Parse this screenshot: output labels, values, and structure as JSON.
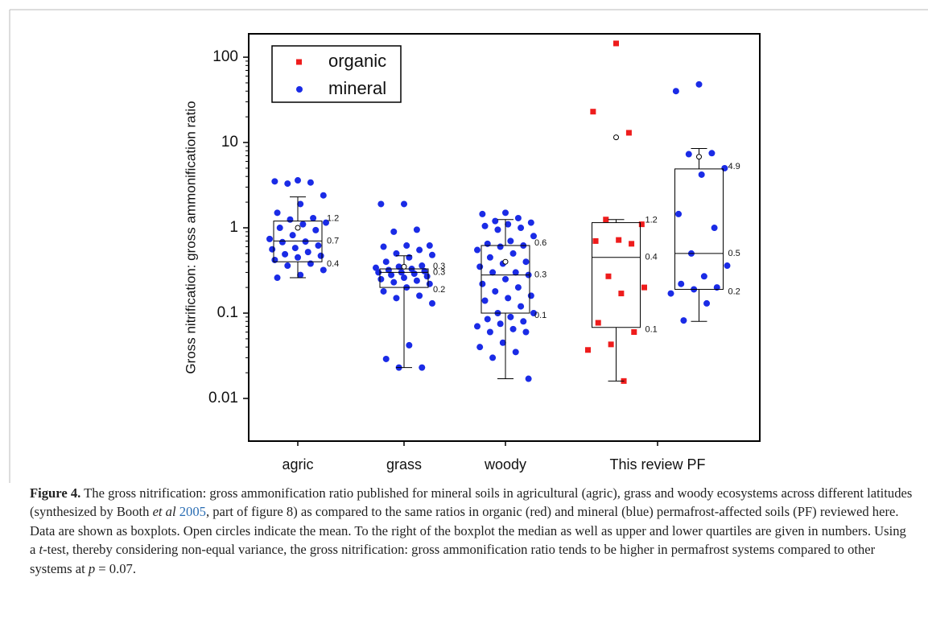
{
  "chart_data": {
    "type": "box",
    "y_label": "Gross nitrification: gross ammonification ratio",
    "log_scale": true,
    "ylim": [
      0.00316,
      188
    ],
    "yticks": [
      0.01,
      0.1,
      1,
      10,
      100
    ],
    "legend": "upper left",
    "categories": [
      "agric",
      "grass",
      "woody",
      "This review PF"
    ],
    "series": [
      {
        "name": "organic",
        "color": "#ee1c1c"
      },
      {
        "name": "mineral",
        "color": "#1a2be6"
      }
    ],
    "groups": [
      {
        "category": "agric",
        "boxes": [
          {
            "series": "mineral",
            "whisker_low": 0.26,
            "q1": 0.4,
            "median": 0.7,
            "q3": 1.2,
            "whisker_high": 2.3,
            "mean": 1.0,
            "labels": [
              "1.2",
              "0.7",
              "0.4"
            ],
            "values": [
              3.6,
              3.5,
              3.4,
              3.3,
              2.4,
              1.9,
              1.5,
              1.3,
              1.25,
              1.15,
              1.1,
              1.0,
              0.94,
              0.82,
              0.74,
              0.69,
              0.68,
              0.62,
              0.58,
              0.56,
              0.52,
              0.49,
              0.47,
              0.45,
              0.42,
              0.38,
              0.36,
              0.32,
              0.28,
              0.26
            ]
          }
        ]
      },
      {
        "category": "grass",
        "boxes": [
          {
            "series": "mineral",
            "whisker_low": 0.023,
            "q1": 0.2,
            "median": 0.3,
            "q3": 0.33,
            "whisker_high": 0.47,
            "mean": 0.35,
            "labels": [
              "0.3",
              "0.3",
              "0.2"
            ],
            "values": [
              1.9,
              1.9,
              0.95,
              0.9,
              0.62,
              0.62,
              0.6,
              0.55,
              0.5,
              0.48,
              0.45,
              0.4,
              0.36,
              0.35,
              0.34,
              0.33,
              0.32,
              0.31,
              0.3,
              0.3,
              0.29,
              0.28,
              0.27,
              0.26,
              0.25,
              0.24,
              0.23,
              0.22,
              0.2,
              0.18,
              0.16,
              0.15,
              0.13,
              0.042,
              0.029,
              0.023,
              0.023
            ]
          }
        ]
      },
      {
        "category": "woody",
        "boxes": [
          {
            "series": "mineral",
            "whisker_low": 0.017,
            "q1": 0.1,
            "median": 0.28,
            "q3": 0.62,
            "whisker_high": 1.25,
            "mean": 0.4,
            "labels": [
              "0.6",
              "0.3",
              "0.1"
            ],
            "values": [
              1.5,
              1.45,
              1.3,
              1.2,
              1.15,
              1.1,
              1.05,
              1.0,
              0.95,
              0.8,
              0.7,
              0.65,
              0.62,
              0.6,
              0.55,
              0.5,
              0.45,
              0.4,
              0.38,
              0.35,
              0.3,
              0.3,
              0.28,
              0.25,
              0.22,
              0.2,
              0.18,
              0.16,
              0.15,
              0.14,
              0.12,
              0.1,
              0.1,
              0.09,
              0.085,
              0.08,
              0.075,
              0.07,
              0.065,
              0.06,
              0.06,
              0.045,
              0.04,
              0.035,
              0.03,
              0.017
            ]
          }
        ]
      },
      {
        "category": "This review PF",
        "boxes": [
          {
            "series": "organic",
            "whisker_low": 0.016,
            "q1": 0.068,
            "median": 0.45,
            "q3": 1.15,
            "whisker_high": 1.25,
            "mean": 11.5,
            "labels": [
              "1.2",
              "0.4",
              "0.1"
            ],
            "values": [
              145,
              23,
              13,
              1.25,
              1.1,
              0.72,
              0.7,
              0.65,
              0.27,
              0.2,
              0.17,
              0.077,
              0.06,
              0.043,
              0.037,
              0.016
            ]
          },
          {
            "series": "mineral",
            "whisker_low": 0.08,
            "q1": 0.19,
            "median": 0.5,
            "q3": 4.9,
            "whisker_high": 8.5,
            "mean": 6.8,
            "labels": [
              "4.9",
              "0.5",
              "0.2"
            ],
            "values": [
              48,
              40,
              7.5,
              7.3,
              5.0,
              4.2,
              1.45,
              1.0,
              0.5,
              0.36,
              0.27,
              0.22,
              0.2,
              0.19,
              0.17,
              0.13,
              0.082
            ]
          }
        ]
      }
    ]
  },
  "caption": {
    "label": "Figure 4.",
    "parts": [
      " The gross nitrification: gross ammonification ratio published for mineral soils in agricultural (agric), grass and woody ecosystems across different latitudes (synthesized by Booth ",
      "et al",
      " ",
      "2005",
      ", part of figure 8) as compared to the same ratios in organic (red) and mineral (blue) permafrost-affected soils (PF) reviewed here. Data are shown as boxplots. Open circles indicate the mean. To the right of the boxplot the median as well as upper and lower quartiles are given in numbers. Using a ",
      "t",
      "-test, thereby considering non-equal variance, the gross nitrification: gross ammonification ratio tends to be higher in permafrost systems compared to other systems at ",
      "p",
      " = 0.07."
    ]
  }
}
